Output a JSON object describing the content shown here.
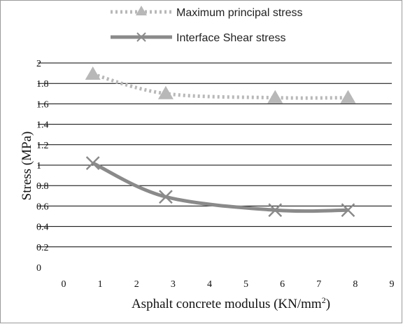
{
  "chart_data": {
    "type": "line",
    "xlabel": "Asphalt concrete modulus (KN/mm",
    "xlabel_sup": "2",
    "xlabel_close": ")",
    "ylabel": "Stress (MPa)",
    "xlim": [
      0,
      9
    ],
    "ylim": [
      0,
      2
    ],
    "xticks": [
      "0",
      "1",
      "2",
      "3",
      "4",
      "5",
      "6",
      "7",
      "8",
      "9"
    ],
    "yticks": [
      "0",
      "0.2",
      "0.4",
      "0.6",
      "0.8",
      "1",
      "1.2",
      "1.4",
      "1.6",
      "1.8",
      "2"
    ],
    "grid": "horizontal",
    "legend_position": "top",
    "series": [
      {
        "name": "Maximum principal stress",
        "marker": "triangle",
        "line_style": "dotted",
        "color": "#b8b8b8",
        "x": [
          0.8,
          2.8,
          5.8,
          7.8
        ],
        "y": [
          1.89,
          1.7,
          1.66,
          1.66
        ]
      },
      {
        "name": "Interface Shear stress",
        "marker": "x",
        "line_style": "solid",
        "color": "#8a8a8a",
        "x": [
          0.8,
          2.8,
          5.8,
          7.8
        ],
        "y": [
          1.02,
          0.69,
          0.56,
          0.56
        ]
      }
    ]
  }
}
